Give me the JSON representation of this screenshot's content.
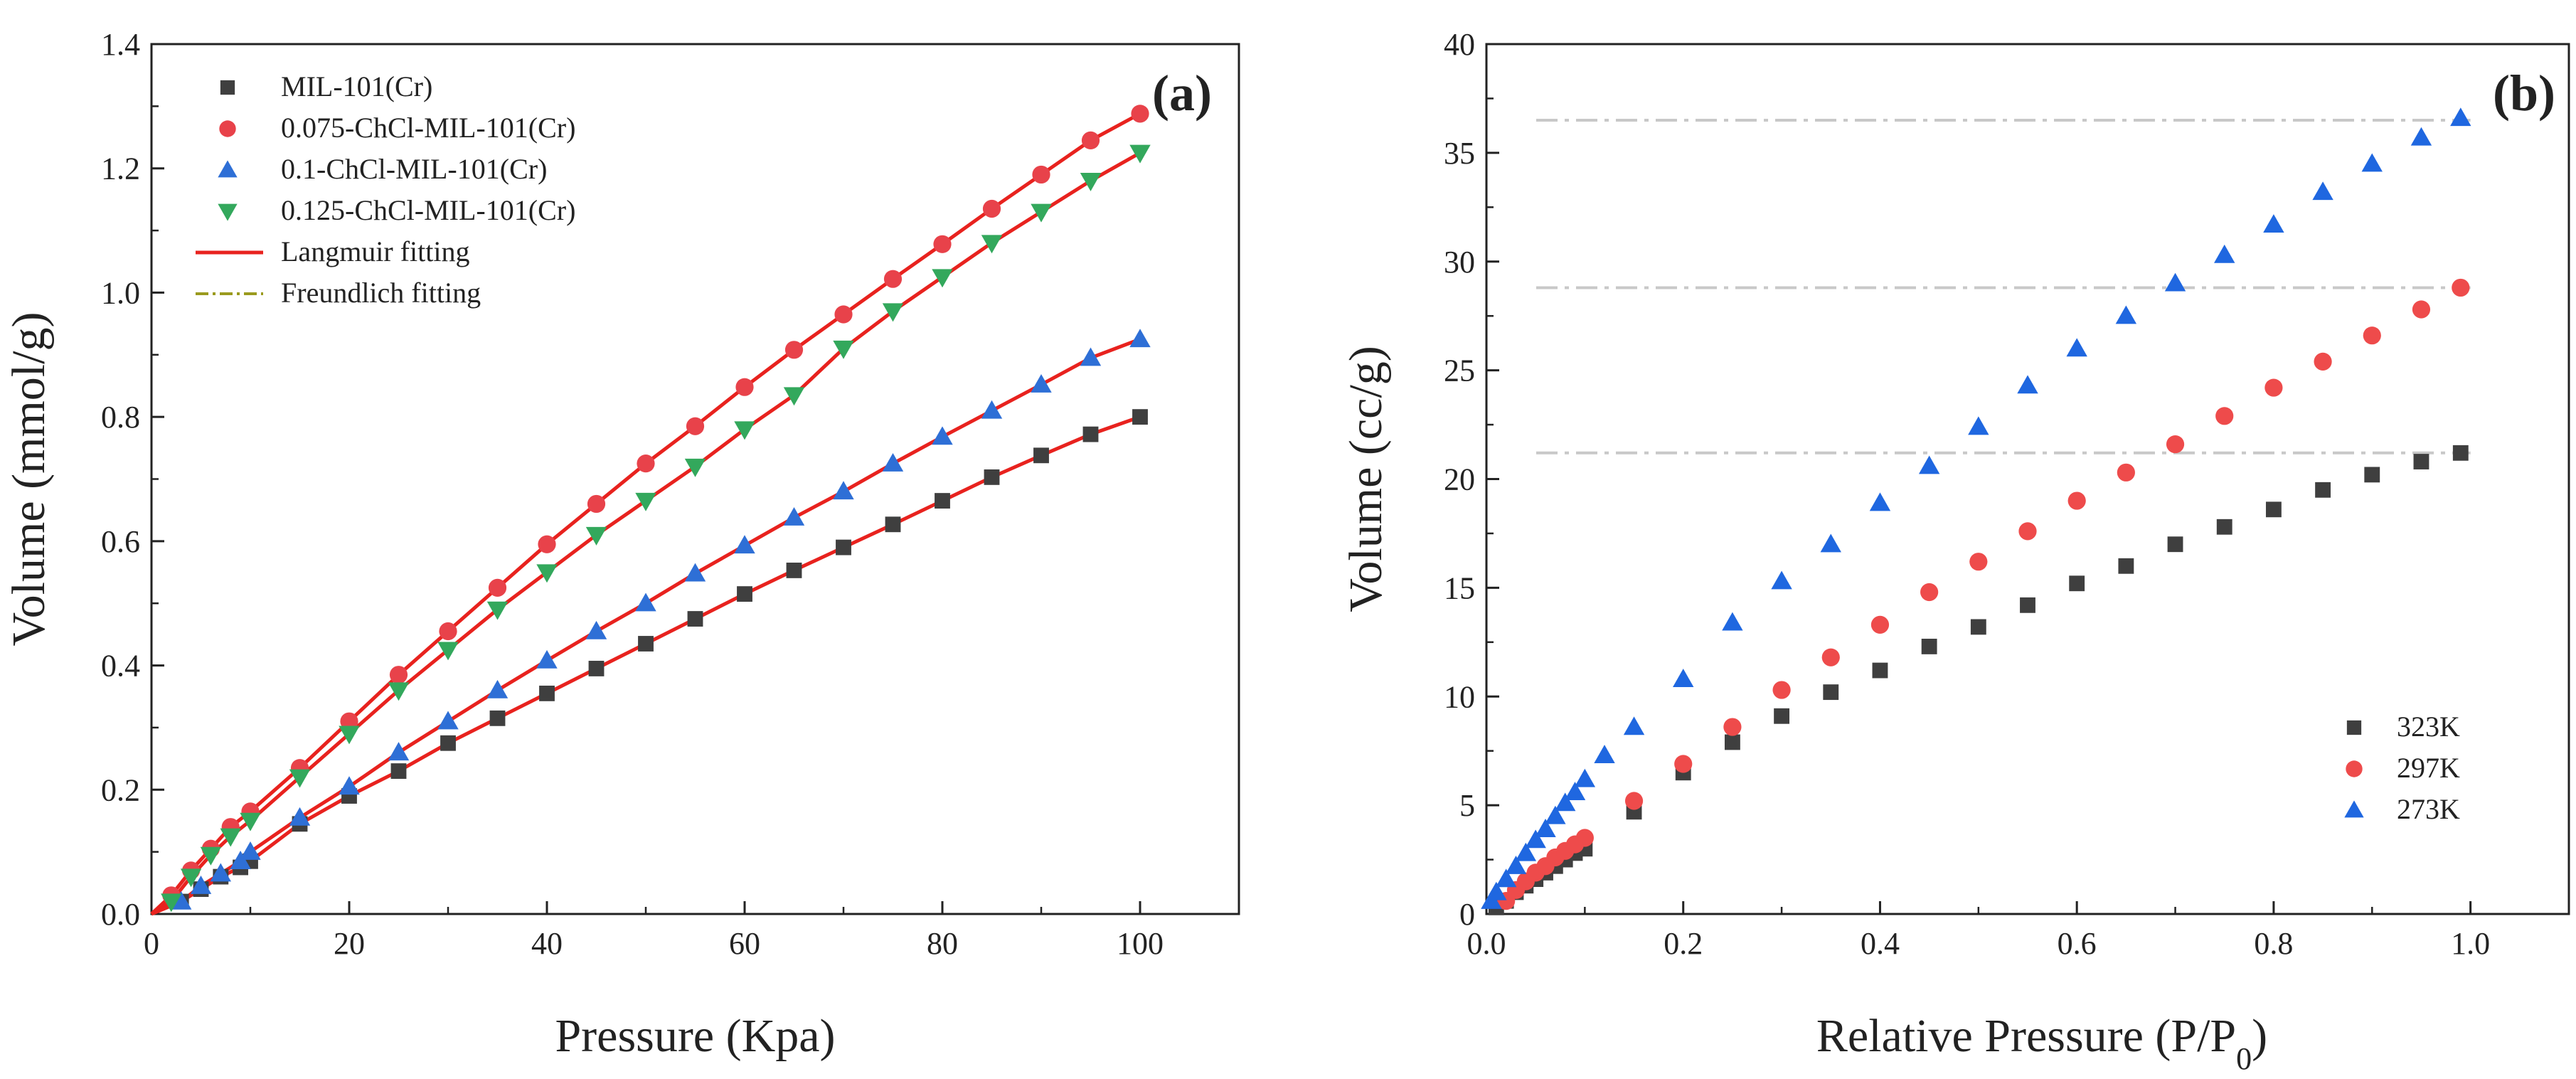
{
  "chart_data": [
    {
      "type": "scatter",
      "panel_label": "(a)",
      "xlabel": "Pressure (Kpa)",
      "ylabel": "Volume (mmol/g)",
      "xlim": [
        0,
        110
      ],
      "ylim": [
        0,
        1.4
      ],
      "xticks": [
        "0",
        "20",
        "40",
        "60",
        "80",
        "100"
      ],
      "yticks": [
        "0.0",
        "0.2",
        "0.4",
        "0.6",
        "0.8",
        "1.0",
        "1.2",
        "1.4"
      ],
      "grid": false,
      "legend_position": "top-left",
      "series": [
        {
          "name": "MIL-101(Cr)",
          "marker": "square",
          "color": "#3f3f3f",
          "x": [
            3,
            5,
            7,
            9,
            10,
            15,
            20,
            25,
            30,
            35,
            40,
            45,
            50,
            55,
            60,
            65,
            70,
            75,
            80,
            85,
            90,
            95,
            100
          ],
          "y": [
            0.02,
            0.04,
            0.06,
            0.075,
            0.085,
            0.145,
            0.19,
            0.23,
            0.275,
            0.315,
            0.355,
            0.395,
            0.435,
            0.475,
            0.515,
            0.553,
            0.59,
            0.627,
            0.665,
            0.703,
            0.738,
            0.772,
            0.8
          ]
        },
        {
          "name": "0.075-ChCl-MIL-101(Cr)",
          "marker": "circle",
          "color": "#e8424a",
          "x": [
            2,
            4,
            6,
            8,
            10,
            15,
            20,
            25,
            30,
            35,
            40,
            45,
            50,
            55,
            60,
            65,
            70,
            75,
            80,
            85,
            90,
            95,
            100
          ],
          "y": [
            0.03,
            0.07,
            0.105,
            0.14,
            0.165,
            0.235,
            0.31,
            0.385,
            0.455,
            0.525,
            0.595,
            0.66,
            0.725,
            0.785,
            0.848,
            0.908,
            0.965,
            1.022,
            1.078,
            1.135,
            1.19,
            1.245,
            1.288
          ]
        },
        {
          "name": "0.1-ChCl-MIL-101(Cr)",
          "marker": "triangle-up",
          "color": "#2e6fd6",
          "x": [
            3,
            5,
            7,
            9,
            10,
            15,
            20,
            25,
            30,
            35,
            40,
            45,
            50,
            55,
            60,
            65,
            70,
            75,
            80,
            85,
            90,
            95,
            100
          ],
          "y": [
            0.02,
            0.045,
            0.065,
            0.085,
            0.1,
            0.155,
            0.205,
            0.26,
            0.31,
            0.36,
            0.408,
            0.455,
            0.5,
            0.548,
            0.593,
            0.638,
            0.68,
            0.725,
            0.768,
            0.81,
            0.852,
            0.895,
            0.925
          ]
        },
        {
          "name": "0.125-ChCl-MIL-101(Cr)",
          "marker": "triangle-down",
          "color": "#33a85c",
          "x": [
            2,
            4,
            6,
            8,
            10,
            15,
            20,
            25,
            30,
            35,
            40,
            45,
            50,
            55,
            60,
            65,
            70,
            75,
            80,
            85,
            90,
            95,
            100
          ],
          "y": [
            0.02,
            0.06,
            0.095,
            0.125,
            0.15,
            0.22,
            0.29,
            0.36,
            0.425,
            0.49,
            0.55,
            0.61,
            0.665,
            0.72,
            0.78,
            0.835,
            0.91,
            0.97,
            1.025,
            1.08,
            1.13,
            1.18,
            1.225
          ]
        }
      ],
      "fits": [
        {
          "name": "Langmuir fitting",
          "style": "solid",
          "color": "#e8221e"
        },
        {
          "name": "Freundlich fitting",
          "style": "dash-dot",
          "color": "#9a9a1e"
        }
      ]
    },
    {
      "type": "scatter",
      "panel_label": "(b)",
      "xlabel": "Relative Pressure (P/P",
      "xlabel_sub": "0",
      "xlabel_end": ")",
      "ylabel": "Volume (cc/g)",
      "xlim": [
        0,
        1.1
      ],
      "ylim": [
        0,
        40
      ],
      "xticks": [
        "0.0",
        "0.2",
        "0.4",
        "0.6",
        "0.8",
        "1.0"
      ],
      "yticks": [
        "0",
        "5",
        "10",
        "15",
        "20",
        "25",
        "30",
        "35",
        "40"
      ],
      "grid": false,
      "legend_position": "bottom-right",
      "reference_lines_y": [
        21.2,
        28.8,
        36.5
      ],
      "series": [
        {
          "name": "323K",
          "marker": "square",
          "color": "#3f3f3f",
          "x": [
            0.01,
            0.02,
            0.03,
            0.04,
            0.05,
            0.06,
            0.07,
            0.08,
            0.09,
            0.1,
            0.15,
            0.2,
            0.25,
            0.3,
            0.35,
            0.4,
            0.45,
            0.5,
            0.55,
            0.6,
            0.65,
            0.7,
            0.75,
            0.8,
            0.85,
            0.9,
            0.95,
            0.99
          ],
          "y": [
            0.3,
            0.6,
            1.0,
            1.3,
            1.6,
            1.9,
            2.2,
            2.5,
            2.8,
            3.0,
            4.7,
            6.5,
            7.9,
            9.1,
            10.2,
            11.2,
            12.3,
            13.2,
            14.2,
            15.2,
            16.0,
            17.0,
            17.8,
            18.6,
            19.5,
            20.2,
            20.8,
            21.2
          ]
        },
        {
          "name": "297K",
          "marker": "circle",
          "color": "#ee4b4b",
          "x": [
            0.02,
            0.03,
            0.04,
            0.05,
            0.06,
            0.07,
            0.08,
            0.09,
            0.1,
            0.15,
            0.2,
            0.25,
            0.3,
            0.35,
            0.4,
            0.45,
            0.5,
            0.55,
            0.6,
            0.65,
            0.7,
            0.75,
            0.8,
            0.85,
            0.9,
            0.95,
            0.99
          ],
          "y": [
            0.6,
            1.1,
            1.5,
            1.9,
            2.2,
            2.6,
            2.9,
            3.2,
            3.5,
            5.2,
            6.9,
            8.6,
            10.3,
            11.8,
            13.3,
            14.8,
            16.2,
            17.6,
            19.0,
            20.3,
            21.6,
            22.9,
            24.2,
            25.4,
            26.6,
            27.8,
            28.8
          ]
        },
        {
          "name": "273K",
          "marker": "triangle-up",
          "color": "#1f67e0",
          "x": [
            0.005,
            0.01,
            0.02,
            0.03,
            0.04,
            0.05,
            0.06,
            0.07,
            0.08,
            0.09,
            0.1,
            0.12,
            0.15,
            0.2,
            0.25,
            0.3,
            0.35,
            0.4,
            0.45,
            0.5,
            0.55,
            0.6,
            0.65,
            0.7,
            0.75,
            0.8,
            0.85,
            0.9,
            0.95,
            0.99
          ],
          "y": [
            0.6,
            1.0,
            1.6,
            2.2,
            2.8,
            3.4,
            3.9,
            4.5,
            5.1,
            5.6,
            6.2,
            7.3,
            8.6,
            10.8,
            13.4,
            15.3,
            17.0,
            18.9,
            20.6,
            22.4,
            24.3,
            26.0,
            27.5,
            29.0,
            30.3,
            31.7,
            33.2,
            34.5,
            35.7,
            36.6
          ]
        }
      ]
    }
  ]
}
